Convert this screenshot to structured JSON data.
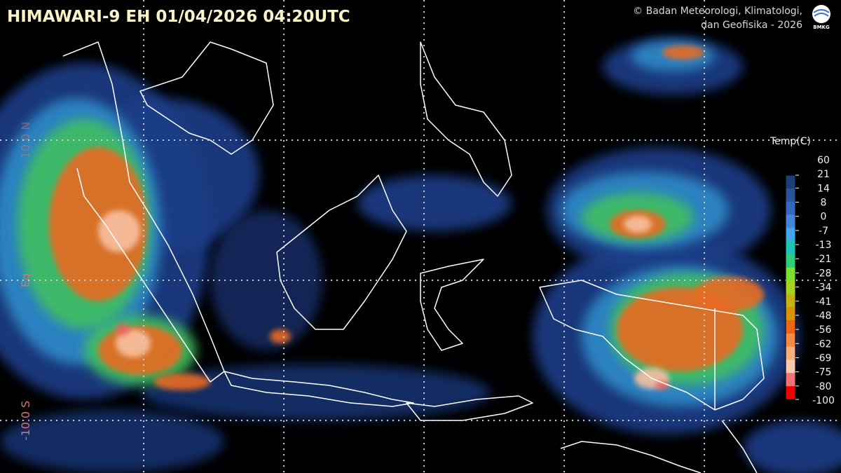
{
  "header": {
    "title": "HIMAWARI-9 EH  01/04/2026  04:20UTC",
    "credit": [
      "© Badan Meteorologi, Klimatologi,",
      "dan Geofisika -  2026"
    ],
    "logo": "BMKG"
  },
  "latitude_labels": [
    "10.0 N",
    "Eq",
    "-10.0 S"
  ],
  "colorbar": {
    "title": "Temp(C)",
    "labels": [
      60,
      21,
      14,
      8,
      0,
      -7,
      -13,
      -21,
      -28,
      -34,
      -41,
      -48,
      -56,
      -62,
      -69,
      -75,
      -80,
      -100
    ],
    "colors": [
      "#1d3d78",
      "#27539c",
      "#3468c0",
      "#4585dc",
      "#3fa8ea",
      "#20c4b4",
      "#2ccf78",
      "#7bde33",
      "#a8d21e",
      "#c6b112",
      "#d89406",
      "#f06414",
      "#f28a44",
      "#f8ae7e",
      "#f8cab0",
      "#f07272",
      "#f00000"
    ]
  }
}
